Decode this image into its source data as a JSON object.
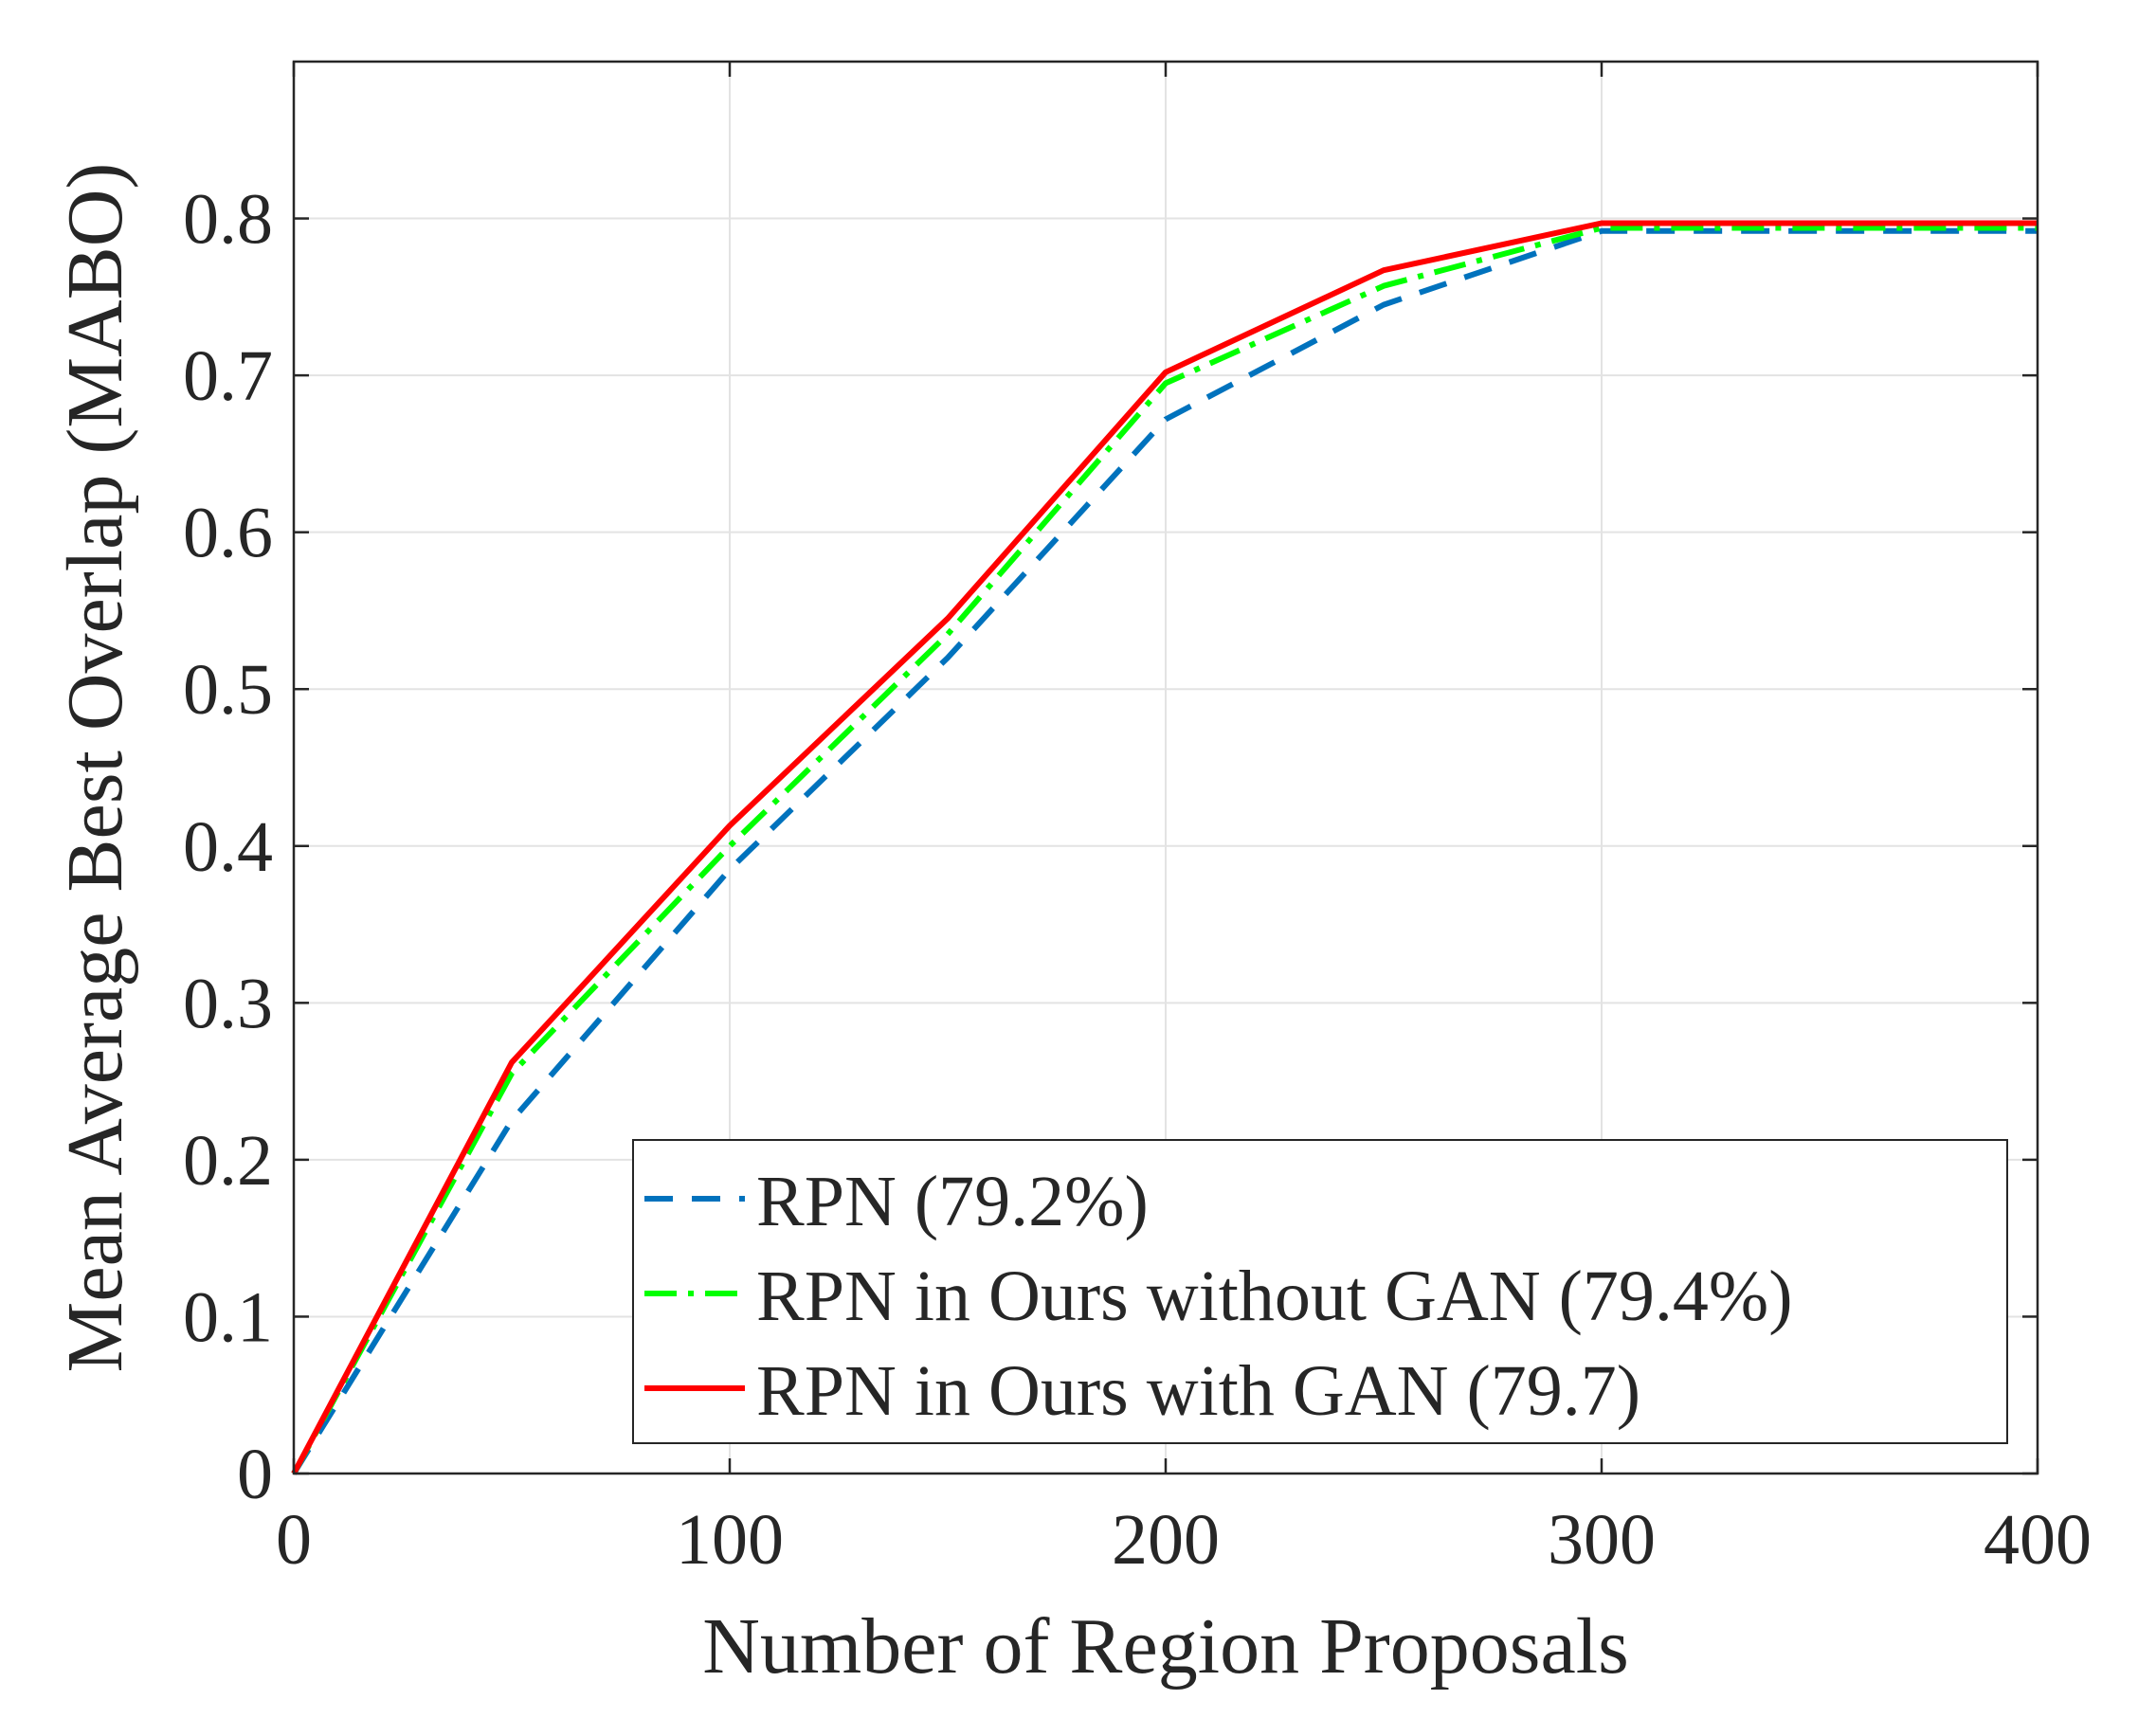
{
  "chart_data": {
    "type": "line",
    "title": "",
    "xlabel": "Number of Region Proposals",
    "ylabel": "Mean Average Best Overlap (MABO)",
    "xlim": [
      0,
      400
    ],
    "ylim": [
      0,
      0.9
    ],
    "x_ticks": [
      0,
      100,
      200,
      300,
      400
    ],
    "x_tick_labels": [
      "0",
      "100",
      "200",
      "300",
      "400"
    ],
    "y_ticks": [
      0,
      0.1,
      0.2,
      0.3,
      0.4,
      0.5,
      0.6,
      0.7,
      0.8
    ],
    "y_tick_labels": [
      "0",
      "0.1",
      "0.2",
      "0.3",
      "0.4",
      "0.5",
      "0.6",
      "0.7",
      "0.8"
    ],
    "grid": true,
    "legend_position": "bottom-right",
    "x": [
      0,
      50,
      100,
      150,
      200,
      250,
      300,
      350,
      400
    ],
    "series": [
      {
        "name": "RPN (79.2%)",
        "color": "#0072bd",
        "line_style": "dashed",
        "values": [
          0,
          0.225,
          0.385,
          0.52,
          0.672,
          0.745,
          0.792,
          0.792,
          0.792
        ]
      },
      {
        "name": "RPN in Ours without GAN (79.4%)",
        "color": "#00ff00",
        "line_style": "dash-dot",
        "values": [
          0,
          0.255,
          0.4,
          0.535,
          0.695,
          0.757,
          0.794,
          0.794,
          0.794
        ]
      },
      {
        "name": "RPN in Ours with GAN (79.7)",
        "color": "#ff0000",
        "line_style": "solid",
        "values": [
          0,
          0.262,
          0.413,
          0.545,
          0.702,
          0.767,
          0.797,
          0.797,
          0.797
        ]
      }
    ]
  }
}
